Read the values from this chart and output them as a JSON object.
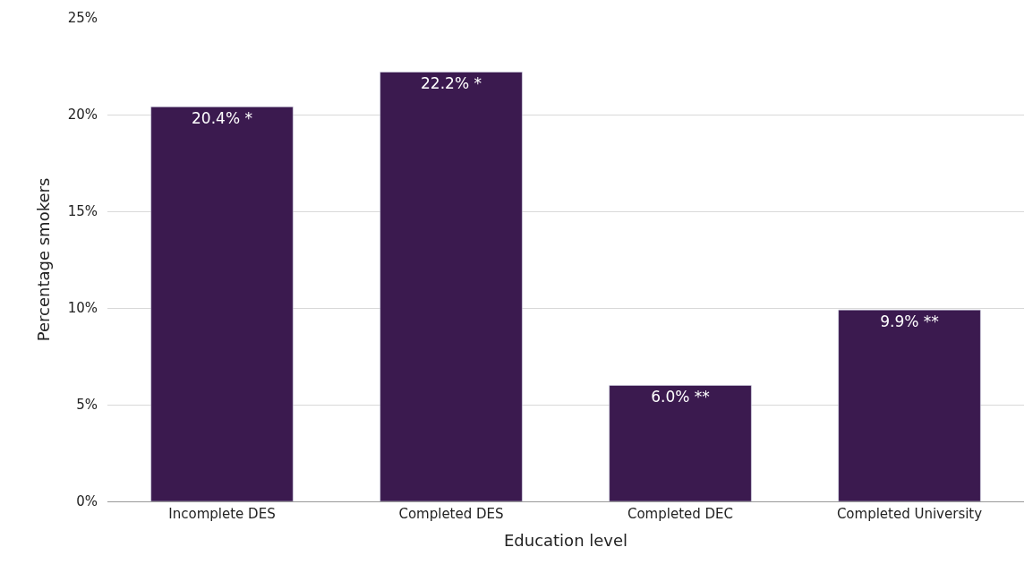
{
  "chart_data": {
    "type": "bar",
    "xlabel": "Education level",
    "ylabel": "Percentage smokers",
    "categories": [
      "Incomplete DES",
      "Completed DES",
      "Completed DEC",
      "Completed University"
    ],
    "values": [
      20.4,
      22.2,
      6.0,
      9.9
    ],
    "value_labels": [
      "20.4% *",
      "22.2% *",
      "6.0% **",
      "9.9% **"
    ],
    "color": "#3b1a4f",
    "ylim": [
      0,
      25
    ],
    "yticks": [
      {
        "value": 0,
        "label": "0%"
      },
      {
        "value": 5,
        "label": "5%"
      },
      {
        "value": 10,
        "label": "10%"
      },
      {
        "value": 15,
        "label": "15%"
      },
      {
        "value": 20,
        "label": "20%"
      },
      {
        "value": 25,
        "label": "25%"
      }
    ],
    "grid": "y",
    "legend": false
  }
}
